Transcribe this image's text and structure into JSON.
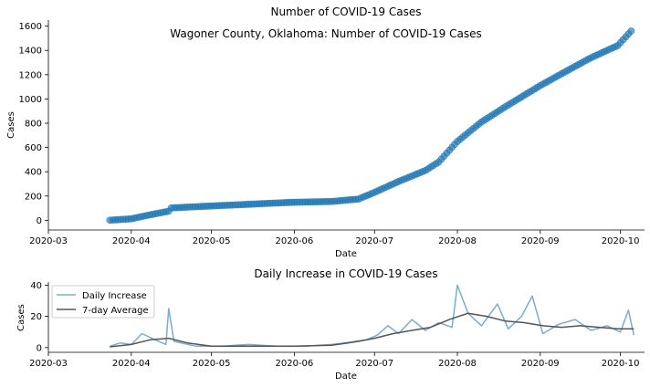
{
  "chart_data": [
    {
      "type": "scatter",
      "title": "Number of COVID-19 Cases",
      "subtitle": "Wagoner County, Oklahoma: Number of COVID-19 Cases",
      "xlabel": "Date",
      "ylabel": "Cases",
      "xlim": [
        "2020-03-01",
        "2020-10-10"
      ],
      "ylim": [
        -80,
        1650
      ],
      "x_ticks": [
        "2020-03",
        "2020-04",
        "2020-05",
        "2020-06",
        "2020-07",
        "2020-08",
        "2020-09",
        "2020-10"
      ],
      "y_ticks": [
        0,
        200,
        400,
        600,
        800,
        1000,
        1200,
        1400,
        1600
      ],
      "grid": false,
      "color": "#1f77b4",
      "series": [
        {
          "points": [
            [
              "2020-03-24",
              1
            ],
            [
              "2020-04-01",
              12
            ],
            [
              "2020-04-08",
              45
            ],
            [
              "2020-04-15",
              75
            ],
            [
              "2020-04-16",
              102
            ],
            [
              "2020-04-25",
              112
            ],
            [
              "2020-05-01",
              118
            ],
            [
              "2020-05-15",
              132
            ],
            [
              "2020-05-31",
              148
            ],
            [
              "2020-06-15",
              155
            ],
            [
              "2020-06-25",
              175
            ],
            [
              "2020-07-01",
              230
            ],
            [
              "2020-07-10",
              320
            ],
            [
              "2020-07-20",
              410
            ],
            [
              "2020-07-25",
              480
            ],
            [
              "2020-08-01",
              650
            ],
            [
              "2020-08-10",
              810
            ],
            [
              "2020-08-20",
              950
            ],
            [
              "2020-09-01",
              1110
            ],
            [
              "2020-09-10",
              1220
            ],
            [
              "2020-09-20",
              1340
            ],
            [
              "2020-09-30",
              1440
            ],
            [
              "2020-10-05",
              1560
            ]
          ]
        }
      ]
    },
    {
      "type": "line",
      "title": "Daily Increase in COVID-19 Cases",
      "xlabel": "Date",
      "ylabel": "Cases",
      "xlim": [
        "2020-03-01",
        "2020-10-10"
      ],
      "ylim": [
        -3,
        42
      ],
      "x_ticks": [
        "2020-03",
        "2020-04",
        "2020-05",
        "2020-06",
        "2020-07",
        "2020-08",
        "2020-09",
        "2020-10"
      ],
      "y_ticks": [
        0,
        20,
        40
      ],
      "grid": false,
      "legend_location": "upper-left",
      "series": [
        {
          "name": "Daily Increase",
          "color": "#1f77b4",
          "points": [
            [
              "2020-03-24",
              1
            ],
            [
              "2020-03-28",
              3
            ],
            [
              "2020-04-01",
              2
            ],
            [
              "2020-04-05",
              9
            ],
            [
              "2020-04-10",
              5
            ],
            [
              "2020-04-14",
              2
            ],
            [
              "2020-04-15",
              25
            ],
            [
              "2020-04-17",
              4
            ],
            [
              "2020-04-25",
              1
            ],
            [
              "2020-05-05",
              1
            ],
            [
              "2020-05-15",
              2
            ],
            [
              "2020-05-25",
              1
            ],
            [
              "2020-06-05",
              1
            ],
            [
              "2020-06-15",
              2
            ],
            [
              "2020-06-20",
              3
            ],
            [
              "2020-06-28",
              5
            ],
            [
              "2020-07-02",
              8
            ],
            [
              "2020-07-06",
              14
            ],
            [
              "2020-07-10",
              9
            ],
            [
              "2020-07-15",
              18
            ],
            [
              "2020-07-20",
              11
            ],
            [
              "2020-07-25",
              16
            ],
            [
              "2020-07-30",
              13
            ],
            [
              "2020-08-01",
              40
            ],
            [
              "2020-08-05",
              22
            ],
            [
              "2020-08-10",
              14
            ],
            [
              "2020-08-16",
              28
            ],
            [
              "2020-08-20",
              12
            ],
            [
              "2020-08-25",
              20
            ],
            [
              "2020-08-29",
              33
            ],
            [
              "2020-09-02",
              9
            ],
            [
              "2020-09-08",
              15
            ],
            [
              "2020-09-14",
              18
            ],
            [
              "2020-09-20",
              11
            ],
            [
              "2020-09-26",
              14
            ],
            [
              "2020-10-01",
              10
            ],
            [
              "2020-10-04",
              24
            ],
            [
              "2020-10-06",
              8
            ]
          ]
        },
        {
          "name": "7-day Average",
          "color": "#555555",
          "points": [
            [
              "2020-03-24",
              0.5
            ],
            [
              "2020-04-01",
              2
            ],
            [
              "2020-04-08",
              5
            ],
            [
              "2020-04-15",
              6
            ],
            [
              "2020-04-22",
              3
            ],
            [
              "2020-05-01",
              1
            ],
            [
              "2020-05-15",
              1
            ],
            [
              "2020-06-01",
              1
            ],
            [
              "2020-06-15",
              1.5
            ],
            [
              "2020-06-25",
              4
            ],
            [
              "2020-07-01",
              6
            ],
            [
              "2020-07-08",
              9
            ],
            [
              "2020-07-15",
              11
            ],
            [
              "2020-07-22",
              13
            ],
            [
              "2020-07-29",
              18
            ],
            [
              "2020-08-05",
              22
            ],
            [
              "2020-08-12",
              20
            ],
            [
              "2020-08-19",
              17
            ],
            [
              "2020-08-26",
              16
            ],
            [
              "2020-09-02",
              14
            ],
            [
              "2020-09-09",
              13
            ],
            [
              "2020-09-16",
              14
            ],
            [
              "2020-09-23",
              13
            ],
            [
              "2020-09-30",
              12
            ],
            [
              "2020-10-06",
              12
            ]
          ]
        }
      ]
    }
  ]
}
